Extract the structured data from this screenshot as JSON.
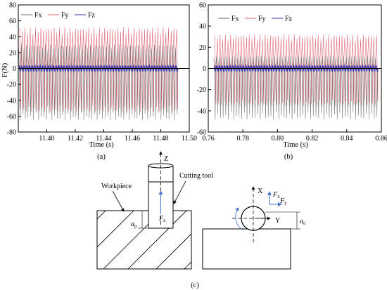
{
  "chart_data": [
    {
      "type": "line",
      "panel_label": "(a)",
      "xlabel": "Time (s)",
      "ylabel": "F(N)",
      "xlim": [
        11.38,
        11.5
      ],
      "ylim": [
        -80,
        80
      ],
      "xticks": [
        11.4,
        11.42,
        11.44,
        11.46,
        11.48,
        11.5
      ],
      "yticks": [
        -80,
        -60,
        -40,
        -20,
        0,
        20,
        40,
        60,
        80
      ],
      "xtick_labels": [
        "11.40",
        "11.42",
        "11.44",
        "11.46",
        "11.48",
        "11.50"
      ],
      "ytick_labels": [
        "-80",
        "-60",
        "-40",
        "-20",
        "0",
        "20",
        "40",
        "60",
        "80"
      ],
      "signal_x_range": [
        11.38,
        11.492
      ],
      "cycles": 60,
      "legend_position": "top-left",
      "series": [
        {
          "name": "Fx",
          "color": "#6f6f6f",
          "max": 30,
          "min": -65
        },
        {
          "name": "Fy",
          "color": "#e0606e",
          "max": 52,
          "min": -55
        },
        {
          "name": "Fz",
          "color": "#3b3bb0",
          "max": 4,
          "min": -4
        }
      ]
    },
    {
      "type": "line",
      "panel_label": "(b)",
      "xlabel": "Time (s)",
      "ylabel": "",
      "xlim": [
        0.76,
        0.86
      ],
      "ylim": [
        -60,
        60
      ],
      "xticks": [
        0.76,
        0.78,
        0.8,
        0.82,
        0.84,
        0.86
      ],
      "yticks": [
        -60,
        -40,
        -20,
        0,
        20,
        40,
        60
      ],
      "xtick_labels": [
        "0.76",
        "0.78",
        "0.80",
        "0.82",
        "0.84",
        "0.86"
      ],
      "ytick_labels": [
        "-60",
        "-40",
        "-20",
        "0",
        "20",
        "40",
        "60"
      ],
      "signal_x_range": [
        0.763,
        0.858
      ],
      "cycles": 62,
      "legend_position": "top-center",
      "series": [
        {
          "name": "Fx",
          "color": "#6f6f6f",
          "max": 12,
          "min": -48
        },
        {
          "name": "Fy",
          "color": "#e0606e",
          "max": 32,
          "min": -35
        },
        {
          "name": "Fz",
          "color": "#3b3bb0",
          "max": 3,
          "min": -3
        }
      ]
    }
  ],
  "diagram": {
    "caption": "(c)",
    "left": {
      "axis_z": "Z",
      "label_workpiece": "Workpiece",
      "label_tool": "Cutting tool",
      "label_ap": "a",
      "label_ap_sub": "p",
      "label_fz": "F",
      "label_fz_sub": "z"
    },
    "right": {
      "axis_x": "X",
      "axis_y": "Y",
      "label_fx": "F",
      "label_fx_sub": "x",
      "label_fy": "F",
      "label_fy_sub": "y",
      "label_ae": "a",
      "label_ae_sub": "e"
    }
  },
  "colors": {
    "axis": "#000000",
    "force_arrow": "#4a78c8",
    "frame_arrow": "#3d6fbf"
  }
}
